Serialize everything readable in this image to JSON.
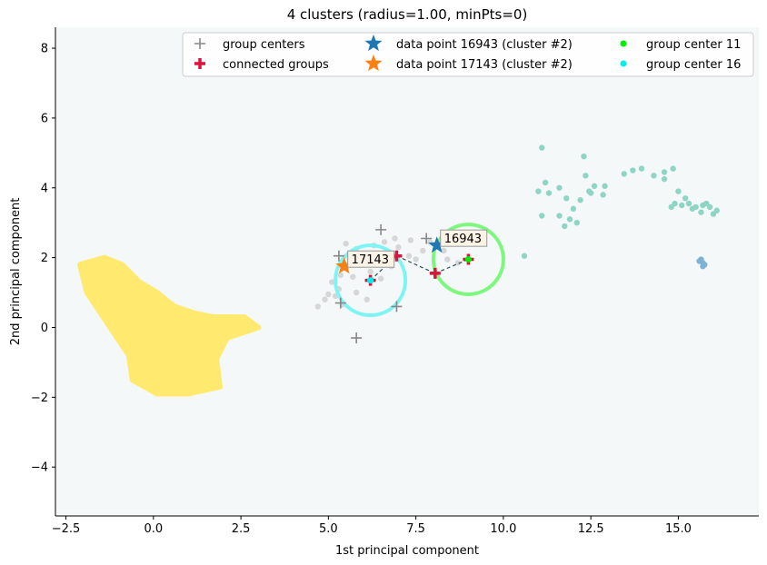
{
  "chart_data": {
    "type": "scatter",
    "title": "4 clusters (radius=1.00, minPts=0)",
    "xlabel": "1st principal component",
    "ylabel": "2nd principal component",
    "xlim": [
      -2.8,
      17.3
    ],
    "ylim": [
      -5.4,
      8.6
    ],
    "xticks": [
      -2.5,
      0.0,
      2.5,
      5.0,
      7.5,
      10.0,
      12.5,
      15.0
    ],
    "xtick_labels": [
      "−2.5",
      "0.0",
      "2.5",
      "5.0",
      "7.5",
      "10.0",
      "12.5",
      "15.0"
    ],
    "yticks": [
      -4,
      -2,
      0,
      2,
      4,
      6,
      8
    ],
    "ytick_labels": [
      "−4",
      "−2",
      "0",
      "2",
      "4",
      "6",
      "8"
    ],
    "grid": false,
    "background": "#f5f8f9",
    "legend_placement": "top-right",
    "clusters": [
      {
        "color": "#ffe96e",
        "shape": "blob",
        "outline": [
          [
            -2.1,
            1.8
          ],
          [
            -1.4,
            2.0
          ],
          [
            -0.9,
            1.8
          ],
          [
            -0.4,
            1.3
          ],
          [
            0.1,
            1.0
          ],
          [
            0.6,
            0.6
          ],
          [
            1.2,
            0.4
          ],
          [
            1.7,
            0.3
          ],
          [
            2.6,
            0.3
          ],
          [
            3.0,
            0.0
          ],
          [
            2.1,
            -0.3
          ],
          [
            1.8,
            -0.9
          ],
          [
            1.9,
            -1.7
          ],
          [
            1.0,
            -1.9
          ],
          [
            0.1,
            -1.9
          ],
          [
            -0.6,
            -1.5
          ],
          [
            -0.7,
            -0.8
          ],
          [
            -1.1,
            -0.2
          ],
          [
            -1.5,
            0.4
          ],
          [
            -1.9,
            1.0
          ]
        ]
      },
      {
        "color": "#8fd5c6",
        "points": [
          [
            11.1,
            5.15
          ],
          [
            12.3,
            4.9
          ],
          [
            11.2,
            4.15
          ],
          [
            11.0,
            3.9
          ],
          [
            11.3,
            3.85
          ],
          [
            11.6,
            4.0
          ],
          [
            11.8,
            3.7
          ],
          [
            12.0,
            3.4
          ],
          [
            11.9,
            3.1
          ],
          [
            12.1,
            3.0
          ],
          [
            11.6,
            3.2
          ],
          [
            11.75,
            2.9
          ],
          [
            11.1,
            3.2
          ],
          [
            10.6,
            2.05
          ],
          [
            12.35,
            4.35
          ],
          [
            12.6,
            4.05
          ],
          [
            12.5,
            3.85
          ],
          [
            12.2,
            3.65
          ],
          [
            12.45,
            3.9
          ],
          [
            12.9,
            4.05
          ],
          [
            12.85,
            3.8
          ],
          [
            13.45,
            4.4
          ],
          [
            13.7,
            4.5
          ],
          [
            13.95,
            4.55
          ],
          [
            14.3,
            4.35
          ],
          [
            14.6,
            4.45
          ],
          [
            14.85,
            4.55
          ],
          [
            14.6,
            4.25
          ],
          [
            15.0,
            3.9
          ],
          [
            15.2,
            3.7
          ],
          [
            14.9,
            3.55
          ],
          [
            15.1,
            3.5
          ],
          [
            15.3,
            3.55
          ],
          [
            15.5,
            3.45
          ],
          [
            15.7,
            3.5
          ],
          [
            15.9,
            3.45
          ],
          [
            16.1,
            3.35
          ],
          [
            15.65,
            3.3
          ],
          [
            16.0,
            3.25
          ],
          [
            14.8,
            3.45
          ],
          [
            15.4,
            3.4
          ],
          [
            15.8,
            3.55
          ]
        ]
      },
      {
        "color": "#7fb3d5",
        "points": [
          [
            15.65,
            1.95
          ],
          [
            15.7,
            1.85
          ],
          [
            15.75,
            1.8
          ],
          [
            15.6,
            1.9
          ],
          [
            15.7,
            1.75
          ]
        ]
      },
      {
        "color": "#d6d6d6",
        "points": [
          [
            4.7,
            0.6
          ],
          [
            4.9,
            0.8
          ],
          [
            5.0,
            0.95
          ],
          [
            5.2,
            0.9
          ],
          [
            5.1,
            1.3
          ],
          [
            5.3,
            1.1
          ],
          [
            5.35,
            1.5
          ],
          [
            5.5,
            1.7
          ],
          [
            5.6,
            2.0
          ],
          [
            5.5,
            2.4
          ],
          [
            5.8,
            2.25
          ],
          [
            6.0,
            2.1
          ],
          [
            6.3,
            2.35
          ],
          [
            6.6,
            2.45
          ],
          [
            6.9,
            2.55
          ],
          [
            7.0,
            2.3
          ],
          [
            7.3,
            2.05
          ],
          [
            7.5,
            1.95
          ],
          [
            7.7,
            2.2
          ],
          [
            7.9,
            2.45
          ],
          [
            8.3,
            2.2
          ],
          [
            8.4,
            1.95
          ],
          [
            8.7,
            1.85
          ],
          [
            6.8,
            1.75
          ],
          [
            6.5,
            1.4
          ],
          [
            5.8,
            1.0
          ],
          [
            6.1,
            0.8
          ],
          [
            5.4,
            0.65
          ],
          [
            7.35,
            2.5
          ],
          [
            8.5,
            2.4
          ],
          [
            6.2,
            1.6
          ],
          [
            5.7,
            1.45
          ]
        ]
      }
    ],
    "group_centers": [
      [
        6.5,
        2.8
      ],
      [
        5.3,
        2.05
      ],
      [
        5.35,
        0.7
      ],
      [
        5.8,
        -0.3
      ],
      [
        6.95,
        0.6
      ],
      [
        7.8,
        2.55
      ],
      [
        6.95,
        2.05
      ]
    ],
    "connected_groups": [
      [
        6.95,
        2.05
      ],
      [
        8.05,
        1.55
      ],
      [
        9.0,
        1.95
      ],
      [
        6.2,
        1.35
      ]
    ],
    "edges": [
      [
        [
          6.95,
          2.05
        ],
        [
          8.05,
          1.55
        ]
      ],
      [
        [
          8.05,
          1.55
        ],
        [
          9.0,
          1.95
        ]
      ],
      [
        [
          6.2,
          1.35
        ],
        [
          6.95,
          2.05
        ]
      ]
    ],
    "circles": [
      {
        "center": [
          9.0,
          1.95
        ],
        "radius": 1.0,
        "color": "#7df77d"
      },
      {
        "center": [
          6.2,
          1.35
        ],
        "radius": 1.0,
        "color": "#7ff4f4"
      }
    ],
    "data_points": [
      {
        "id": "16943",
        "x": 8.1,
        "y": 2.35,
        "color": "#1f77b4"
      },
      {
        "id": "17143",
        "x": 5.45,
        "y": 1.75,
        "color": "#ff7f0e"
      }
    ],
    "highlight_centers": [
      {
        "name": "group center 11",
        "x": 9.0,
        "y": 1.95,
        "color": "#00ee00"
      },
      {
        "name": "group center 16",
        "x": 6.2,
        "y": 1.35,
        "color": "#00eeee"
      }
    ],
    "legend": [
      {
        "key": "group-centers",
        "label": "group centers",
        "marker": "plus",
        "color": "#888888"
      },
      {
        "key": "connected-groups",
        "label": "connected groups",
        "marker": "plus-bold",
        "color": "#dc143c"
      },
      {
        "key": "data-point-16943",
        "label": "data point 16943 (cluster #2)",
        "marker": "star",
        "color": "#1f77b4"
      },
      {
        "key": "data-point-17143",
        "label": "data point 17143 (cluster #2)",
        "marker": "star",
        "color": "#ff7f0e"
      },
      {
        "key": "group-center-11",
        "label": "group center 11",
        "marker": "dot",
        "color": "#00ee00"
      },
      {
        "key": "group-center-16",
        "label": "group center 16",
        "marker": "dot",
        "color": "#00eeee"
      }
    ]
  }
}
